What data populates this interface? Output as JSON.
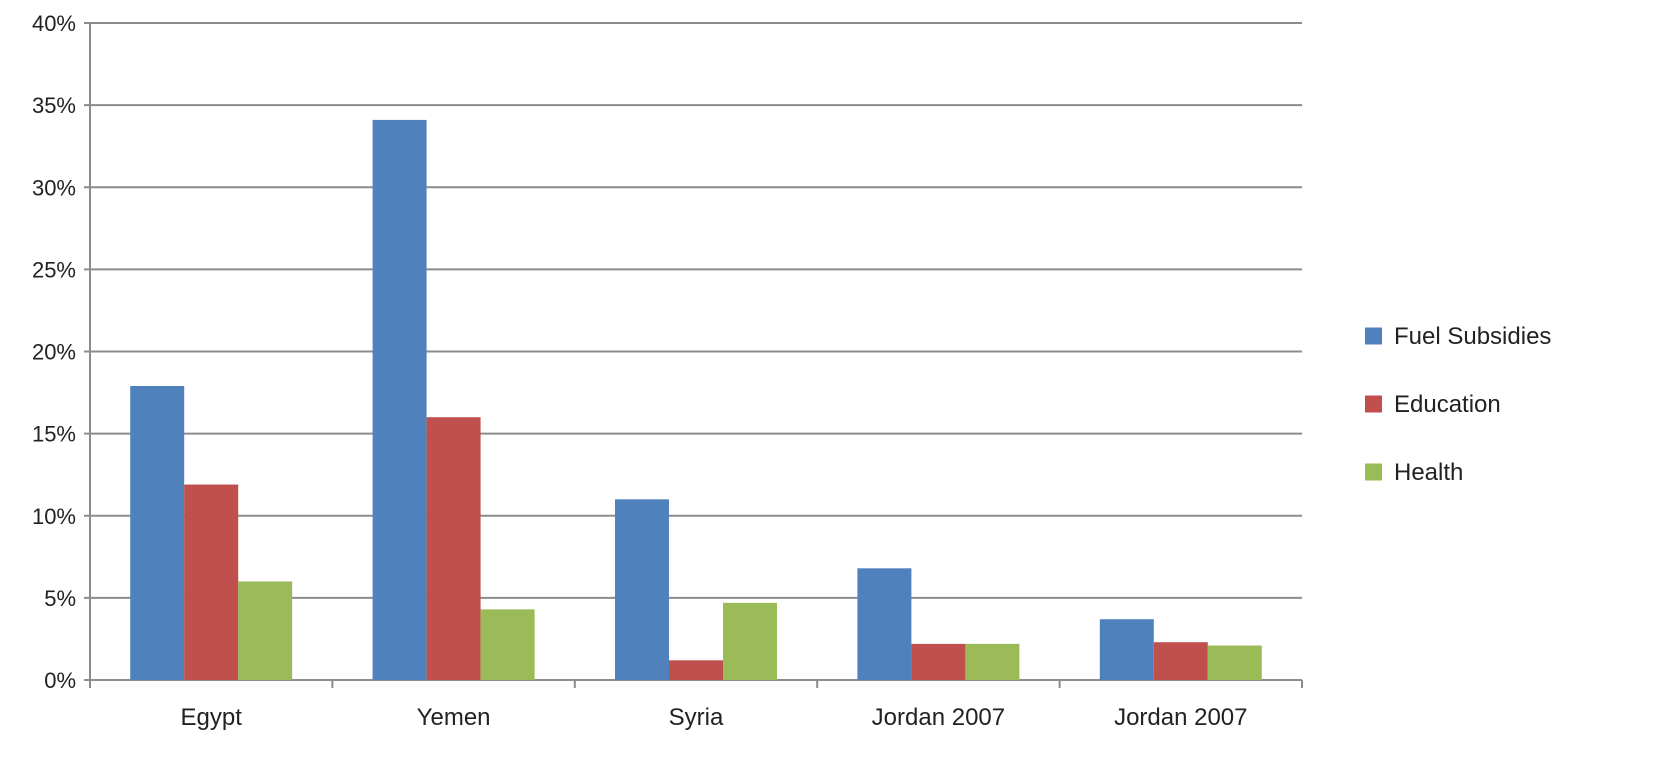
{
  "chart_data": {
    "type": "bar",
    "title": "",
    "xlabel": "",
    "ylabel": "",
    "categories": [
      "Egypt",
      "Yemen",
      "Syria",
      "Jordan 2007",
      "Jordan 2007"
    ],
    "series": [
      {
        "name": "Fuel Subsidies",
        "color": "#4f81bd",
        "values": [
          17.9,
          34.1,
          11.0,
          6.8,
          3.7
        ]
      },
      {
        "name": "Education",
        "color": "#c0504d",
        "values": [
          11.9,
          16.0,
          1.2,
          2.2,
          2.3
        ]
      },
      {
        "name": "Health",
        "color": "#9bbb59",
        "values": [
          6.0,
          4.3,
          4.7,
          2.2,
          2.1
        ]
      }
    ],
    "ylim": [
      0,
      40
    ],
    "yticks": [
      0,
      5,
      10,
      15,
      20,
      25,
      30,
      35,
      40
    ],
    "ytick_labels": [
      "0%",
      "5%",
      "10%",
      "15%",
      "20%",
      "25%",
      "30%",
      "35%",
      "40%"
    ],
    "grid": true,
    "legend_position": "right"
  }
}
